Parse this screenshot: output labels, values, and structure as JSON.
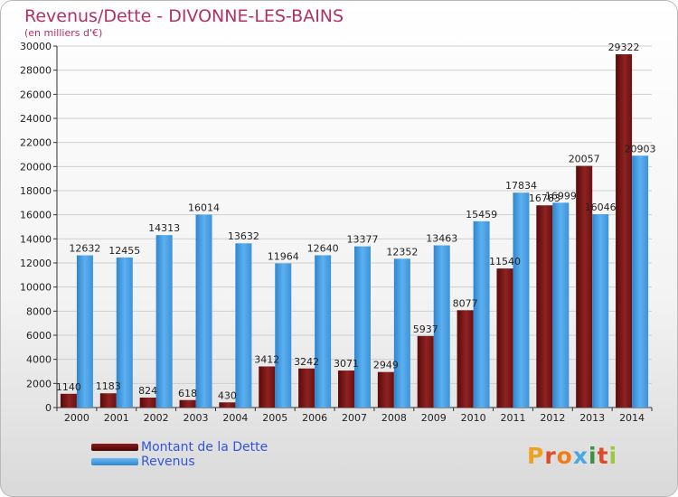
{
  "title": "Revenus/Dette - DIVONNE-LES-BAINS",
  "subtitle": "(en milliers d'€)",
  "logo": {
    "text": "Proxiti",
    "letter_colors": [
      "#f0a020",
      "#e04a2a",
      "#f07d1a",
      "#4aa8e0",
      "#3f8f3f",
      "#e04a2a",
      "#9bc83a"
    ]
  },
  "chart_data": {
    "type": "bar",
    "title": "Revenus/Dette - DIVONNE-LES-BAINS",
    "ylabel": "(en milliers d'€)",
    "xlabel": "",
    "categories": [
      "2000",
      "2001",
      "2002",
      "2003",
      "2004",
      "2005",
      "2006",
      "2007",
      "2008",
      "2009",
      "2010",
      "2011",
      "2012",
      "2013",
      "2014"
    ],
    "ylim": [
      0,
      30000
    ],
    "yticks": [
      0,
      2000,
      4000,
      6000,
      8000,
      10000,
      12000,
      14000,
      16000,
      18000,
      20000,
      22000,
      24000,
      26000,
      28000,
      30000
    ],
    "grid": true,
    "legend_position": "bottom-left",
    "series": [
      {
        "name": "Montant de la Dette",
        "color": "#8b1a1a",
        "values": [
          1140,
          1183,
          824,
          618,
          430,
          3412,
          3242,
          3071,
          2949,
          5937,
          8077,
          11540,
          16783,
          20057,
          29322
        ],
        "labels": [
          "1140",
          "1183",
          "824",
          "618",
          "430",
          "3412",
          "3242",
          "3071",
          "2949",
          "5937",
          "8077",
          "11540",
          "16783",
          "20057",
          "29322"
        ]
      },
      {
        "name": "Revenus",
        "color": "#4aa0e6",
        "values": [
          12632,
          12455,
          14313,
          16014,
          13632,
          11964,
          12640,
          13377,
          12352,
          13463,
          15459,
          17834,
          16999,
          16046,
          20903
        ],
        "labels": [
          "12632",
          "12455",
          "14313",
          "16014",
          "13632",
          "11964",
          "12640",
          "13377",
          "12352",
          "13463",
          "15459",
          "17834",
          "16999",
          "16046",
          "20903"
        ]
      }
    ]
  }
}
